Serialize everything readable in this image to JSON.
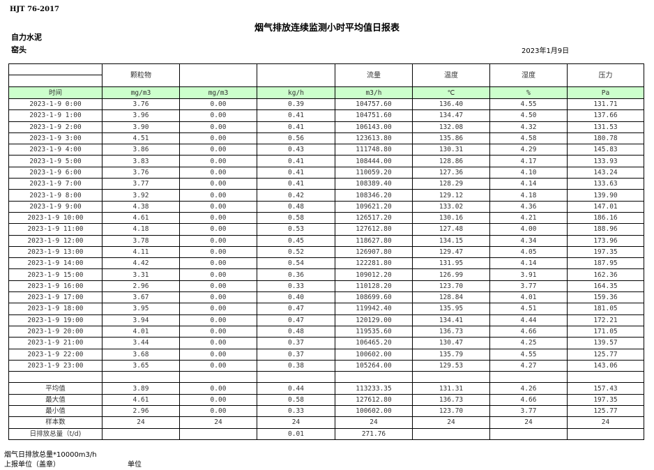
{
  "header": {
    "standard": "HJT  76-2017",
    "title": "烟气排放连续监测小时平均值日报表",
    "company": "自力水泥",
    "unit_name": "窑头",
    "date": "2023年1月9日"
  },
  "table": {
    "columns": [
      "",
      "颗粒物",
      "",
      "",
      "流量",
      "温度",
      "湿度",
      "压力"
    ],
    "units": [
      "时间",
      "mg/m3",
      "mg/m3",
      "kg/h",
      "m3/h",
      "℃",
      "%",
      "Pa"
    ],
    "rows": [
      [
        "2023-1-9 0:00",
        "3.76",
        "0.00",
        "0.39",
        "104757.60",
        "136.40",
        "4.55",
        "131.71"
      ],
      [
        "2023-1-9 1:00",
        "3.96",
        "0.00",
        "0.41",
        "104751.60",
        "134.47",
        "4.50",
        "137.66"
      ],
      [
        "2023-1-9 2:00",
        "3.90",
        "0.00",
        "0.41",
        "106143.00",
        "132.08",
        "4.32",
        "131.53"
      ],
      [
        "2023-1-9 3:00",
        "4.51",
        "0.00",
        "0.56",
        "123613.80",
        "135.86",
        "4.58",
        "180.78"
      ],
      [
        "2023-1-9 4:00",
        "3.86",
        "0.00",
        "0.43",
        "111748.80",
        "130.31",
        "4.29",
        "145.83"
      ],
      [
        "2023-1-9 5:00",
        "3.83",
        "0.00",
        "0.41",
        "108444.00",
        "128.86",
        "4.17",
        "133.93"
      ],
      [
        "2023-1-9 6:00",
        "3.76",
        "0.00",
        "0.41",
        "110059.20",
        "127.36",
        "4.10",
        "143.24"
      ],
      [
        "2023-1-9 7:00",
        "3.77",
        "0.00",
        "0.41",
        "108389.40",
        "128.29",
        "4.14",
        "133.63"
      ],
      [
        "2023-1-9 8:00",
        "3.92",
        "0.00",
        "0.42",
        "108346.20",
        "129.12",
        "4.18",
        "139.90"
      ],
      [
        "2023-1-9 9:00",
        "4.38",
        "0.00",
        "0.48",
        "109621.20",
        "133.02",
        "4.36",
        "147.01"
      ],
      [
        "2023-1-9 10:00",
        "4.61",
        "0.00",
        "0.58",
        "126517.20",
        "130.16",
        "4.21",
        "186.16"
      ],
      [
        "2023-1-9 11:00",
        "4.18",
        "0.00",
        "0.53",
        "127612.80",
        "127.48",
        "4.00",
        "188.96"
      ],
      [
        "2023-1-9 12:00",
        "3.78",
        "0.00",
        "0.45",
        "118627.80",
        "134.15",
        "4.34",
        "173.96"
      ],
      [
        "2023-1-9 13:00",
        "4.11",
        "0.00",
        "0.52",
        "126907.80",
        "129.47",
        "4.05",
        "197.35"
      ],
      [
        "2023-1-9 14:00",
        "4.42",
        "0.00",
        "0.54",
        "122281.80",
        "131.95",
        "4.14",
        "187.95"
      ],
      [
        "2023-1-9 15:00",
        "3.31",
        "0.00",
        "0.36",
        "109012.20",
        "126.99",
        "3.91",
        "162.36"
      ],
      [
        "2023-1-9 16:00",
        "2.96",
        "0.00",
        "0.33",
        "110128.20",
        "123.70",
        "3.77",
        "164.35"
      ],
      [
        "2023-1-9 17:00",
        "3.67",
        "0.00",
        "0.40",
        "108699.60",
        "128.84",
        "4.01",
        "159.36"
      ],
      [
        "2023-1-9 18:00",
        "3.95",
        "0.00",
        "0.47",
        "119942.40",
        "135.95",
        "4.51",
        "181.05"
      ],
      [
        "2023-1-9 19:00",
        "3.94",
        "0.00",
        "0.47",
        "120129.00",
        "134.41",
        "4.44",
        "172.21"
      ],
      [
        "2023-1-9 20:00",
        "4.01",
        "0.00",
        "0.48",
        "119535.60",
        "136.73",
        "4.66",
        "171.05"
      ],
      [
        "2023-1-9 21:00",
        "3.44",
        "0.00",
        "0.37",
        "106465.20",
        "130.47",
        "4.25",
        "139.57"
      ],
      [
        "2023-1-9 22:00",
        "3.68",
        "0.00",
        "0.37",
        "100602.00",
        "135.79",
        "4.55",
        "125.77"
      ],
      [
        "2023-1-9 23:00",
        "3.65",
        "0.00",
        "0.38",
        "105264.00",
        "129.53",
        "4.27",
        "143.06"
      ]
    ],
    "summary": [
      [
        "平均值",
        "3.89",
        "0.00",
        "0.44",
        "113233.35",
        "131.31",
        "4.26",
        "157.43"
      ],
      [
        "最大值",
        "4.61",
        "0.00",
        "0.58",
        "127612.80",
        "136.73",
        "4.66",
        "197.35"
      ],
      [
        "最小值",
        "2.96",
        "0.00",
        "0.33",
        "100602.00",
        "123.70",
        "3.77",
        "125.77"
      ],
      [
        "样本数",
        "24",
        "24",
        "24",
        "24",
        "24",
        "24",
        "24"
      ],
      [
        "日排放总量（t/d)",
        "",
        "",
        "0.01",
        "271.76",
        "",
        "",
        ""
      ]
    ]
  },
  "footer": {
    "note": "烟气日排放总量*10000m3/h",
    "reporter": "上报单位（盖章）",
    "unit_label": "单位"
  },
  "colors": {
    "unit_row_bg": "#ccffcc"
  }
}
